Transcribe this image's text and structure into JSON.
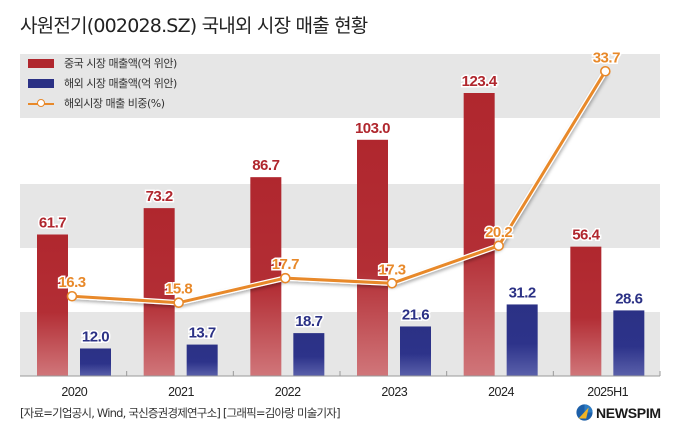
{
  "title": "사원전기(002028.SZ) 국내외 시장 매출 현황",
  "legend": {
    "items": [
      {
        "label": "중국 시장 매출액(억 위안)",
        "color": "#b0272e",
        "kind": "bar"
      },
      {
        "label": "해외 시장 매출액(억 위안)",
        "color": "#2b3185",
        "kind": "bar"
      },
      {
        "label": "해외시장 매출 비중(%)",
        "color": "#e8892a",
        "kind": "line"
      }
    ]
  },
  "source": "[자료=기업공시, Wind, 국신증권경제연구소] [그래픽=김아랑 미술기자]",
  "logo": {
    "text": "NEWSPIM",
    "icon": "newspim-logo-icon"
  },
  "colors": {
    "china_bar": "#b0272e",
    "overseas_bar": "#2b3185",
    "ratio_line": "#e8892a",
    "band_gray": "#e6e6e6"
  },
  "chart_data": {
    "type": "bar",
    "title": "사원전기(002028.SZ) 국내외 시장 매출 현황",
    "categories": [
      "2020",
      "2021",
      "2022",
      "2023",
      "2024",
      "2025H1"
    ],
    "series": [
      {
        "name": "중국 시장 매출액(억 위안)",
        "type": "bar",
        "axis": "left",
        "values": [
          61.7,
          73.2,
          86.7,
          103.0,
          123.4,
          56.4
        ],
        "labels": [
          "61.7",
          "73.2",
          "86.7",
          "103.0",
          "123.4",
          "56.4"
        ]
      },
      {
        "name": "해외 시장 매출액(억 위안)",
        "type": "bar",
        "axis": "left",
        "values": [
          12.0,
          13.7,
          18.7,
          21.6,
          31.2,
          28.6
        ],
        "labels": [
          "12.0",
          "13.7",
          "18.7",
          "21.6",
          "31.2",
          "28.6"
        ]
      },
      {
        "name": "해외시장 매출 비중(%)",
        "type": "line",
        "axis": "right",
        "values": [
          16.3,
          15.8,
          17.7,
          17.3,
          20.2,
          33.7
        ],
        "labels": [
          "16.3",
          "15.8",
          "17.7",
          "17.3",
          "20.2",
          "33.7"
        ]
      }
    ],
    "xlabel": "",
    "ylabel": "",
    "ylim_bars": [
      0,
      123.4
    ],
    "ylim_line": [
      0,
      39.2
    ],
    "axes_visible": false,
    "grid": "alternating horizontal bands",
    "legend_position": "top-left"
  }
}
